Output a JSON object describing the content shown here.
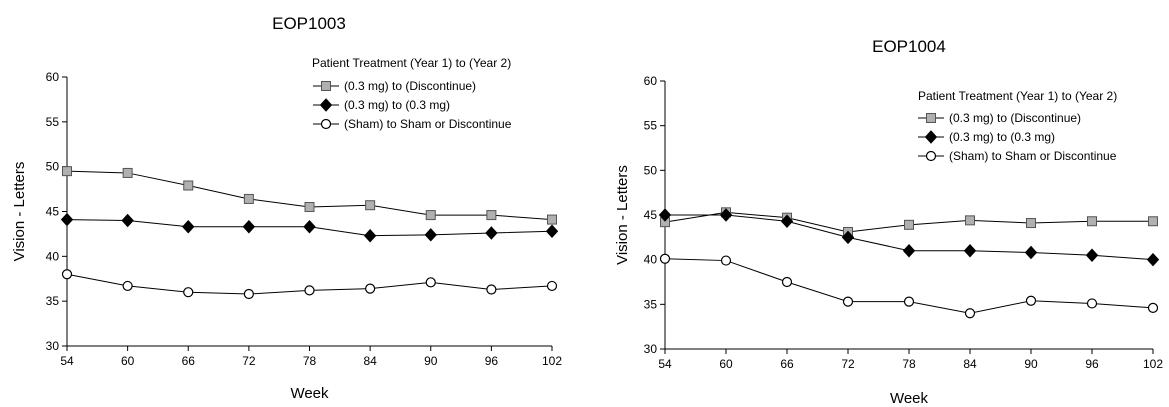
{
  "chart_data": [
    {
      "type": "line",
      "title": "EOP1003",
      "xlabel": "Week",
      "ylabel": "Vision - Letters",
      "x": [
        54,
        60,
        66,
        72,
        78,
        84,
        90,
        96,
        102
      ],
      "xlim": [
        54,
        102
      ],
      "ylim": [
        30,
        60
      ],
      "yticks": [
        30,
        35,
        40,
        45,
        50,
        55,
        60
      ],
      "legend_title": "Patient Treatment (Year 1) to (Year 2)",
      "legend_position": "top-right",
      "grid": false,
      "series": [
        {
          "name": "(0.3 mg) to (Discontinue)",
          "marker": "square",
          "values": [
            49.5,
            49.3,
            47.9,
            46.4,
            45.5,
            45.7,
            44.6,
            44.6,
            44.1
          ]
        },
        {
          "name": "(0.3 mg) to (0.3 mg)",
          "marker": "diamond",
          "values": [
            44.1,
            44.0,
            43.3,
            43.3,
            43.3,
            42.3,
            42.4,
            42.6,
            42.8
          ]
        },
        {
          "name": "(Sham) to Sham or Discontinue",
          "marker": "circle",
          "values": [
            38.0,
            36.7,
            36.0,
            35.8,
            36.2,
            36.4,
            37.1,
            36.3,
            36.7
          ]
        }
      ]
    },
    {
      "type": "line",
      "title": "EOP1004",
      "xlabel": "Week",
      "ylabel": "Vision - Letters",
      "x": [
        54,
        60,
        66,
        72,
        78,
        84,
        90,
        96,
        102
      ],
      "xlim": [
        54,
        102
      ],
      "ylim": [
        30,
        60
      ],
      "yticks": [
        30,
        35,
        40,
        45,
        50,
        55,
        60
      ],
      "legend_title": "Patient Treatment (Year 1) to (Year 2)",
      "legend_position": "top-right",
      "grid": false,
      "series": [
        {
          "name": "(0.3 mg) to (Discontinue)",
          "marker": "square",
          "values": [
            44.2,
            45.3,
            44.7,
            43.1,
            43.9,
            44.4,
            44.1,
            44.3,
            44.3
          ]
        },
        {
          "name": "(0.3 mg) to (0.3 mg)",
          "marker": "diamond",
          "values": [
            45.0,
            45.0,
            44.3,
            42.5,
            41.0,
            41.0,
            40.8,
            40.5,
            40.0
          ]
        },
        {
          "name": "(Sham) to Sham or Discontinue",
          "marker": "circle",
          "values": [
            40.1,
            39.9,
            37.5,
            35.3,
            35.3,
            34.0,
            35.4,
            35.1,
            34.6
          ]
        }
      ]
    }
  ]
}
